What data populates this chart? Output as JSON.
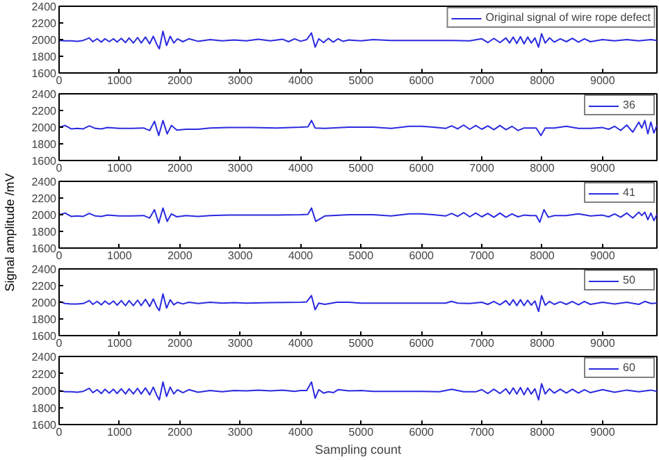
{
  "chart_data": [
    {
      "type": "line",
      "xlim": [
        0,
        9900
      ],
      "xticks": [
        0,
        1000,
        2000,
        3000,
        4000,
        5000,
        6000,
        7000,
        8000,
        9000
      ],
      "ylim": [
        1600,
        2400
      ],
      "yticks": [
        1600,
        1800,
        2000,
        2200,
        2400
      ],
      "grid": false,
      "legend": "top right",
      "x": [
        0,
        100,
        200,
        300,
        400,
        500,
        560,
        630,
        700,
        760,
        830,
        900,
        960,
        1030,
        1100,
        1160,
        1230,
        1300,
        1360,
        1430,
        1500,
        1560,
        1620,
        1660,
        1720,
        1780,
        1840,
        1900,
        1960,
        2050,
        2150,
        2300,
        2500,
        2700,
        2900,
        3100,
        3300,
        3500,
        3700,
        3800,
        3900,
        4000,
        4100,
        4180,
        4240,
        4300,
        4380,
        4460,
        4540,
        4620,
        4700,
        4800,
        5000,
        5200,
        5500,
        6000,
        6500,
        6800,
        7000,
        7100,
        7200,
        7300,
        7400,
        7460,
        7520,
        7580,
        7640,
        7700,
        7760,
        7820,
        7880,
        7940,
        7990,
        8050,
        8120,
        8200,
        8300,
        8400,
        8500,
        8600,
        8700,
        8800,
        9000,
        9200,
        9400,
        9600,
        9800,
        9900
      ],
      "series": [
        {
          "name": "Original signal of wire rope defect",
          "color": "#2a2ae0",
          "values": [
            1990,
            1985,
            1985,
            1980,
            1990,
            2020,
            1975,
            2010,
            1970,
            2010,
            1975,
            2010,
            1970,
            2015,
            1965,
            2020,
            1960,
            2025,
            1960,
            2030,
            1950,
            2040,
            1940,
            1890,
            2100,
            1930,
            2040,
            1960,
            2010,
            1975,
            2010,
            1980,
            2000,
            1985,
            1995,
            1985,
            2005,
            1985,
            2005,
            1975,
            2010,
            1980,
            2000,
            2080,
            1910,
            2010,
            1965,
            2015,
            1970,
            2010,
            1980,
            1995,
            1985,
            2000,
            1990,
            1990,
            1990,
            1985,
            2010,
            1965,
            2015,
            1965,
            2020,
            1960,
            2030,
            1955,
            2035,
            1950,
            2030,
            1960,
            2020,
            1910,
            2070,
            1960,
            2020,
            1970,
            2010,
            1975,
            2015,
            1970,
            2010,
            1975,
            2000,
            1985,
            2000,
            1985,
            2000,
            1990
          ]
        }
      ]
    },
    {
      "type": "line",
      "xlim": [
        0,
        9900
      ],
      "xticks": [
        0,
        1000,
        2000,
        3000,
        4000,
        5000,
        6000,
        7000,
        8000,
        9000
      ],
      "ylim": [
        1600,
        2400
      ],
      "yticks": [
        1600,
        1800,
        2000,
        2200,
        2400
      ],
      "grid": false,
      "legend": "top right",
      "x": [
        0,
        100,
        200,
        300,
        400,
        500,
        600,
        700,
        800,
        1000,
        1200,
        1400,
        1500,
        1580,
        1650,
        1720,
        1790,
        1860,
        1950,
        2100,
        2300,
        2500,
        2800,
        3200,
        3600,
        4000,
        4120,
        4180,
        4240,
        4400,
        4800,
        5200,
        5500,
        5800,
        6000,
        6200,
        6400,
        6500,
        6600,
        6700,
        6800,
        6900,
        7000,
        7100,
        7200,
        7300,
        7400,
        7500,
        7600,
        7700,
        7800,
        7900,
        7980,
        8050,
        8200,
        8400,
        8600,
        8800,
        9000,
        9100,
        9200,
        9300,
        9400,
        9500,
        9600,
        9650,
        9700,
        9750,
        9800,
        9850,
        9900
      ],
      "series": [
        {
          "name": "36",
          "color": "#2a2ae0",
          "values": [
            2000,
            2020,
            1980,
            1985,
            1980,
            2015,
            1985,
            1980,
            1995,
            1985,
            1985,
            1990,
            1960,
            2070,
            1900,
            2080,
            1920,
            2020,
            1965,
            1975,
            1975,
            1990,
            1995,
            1995,
            1990,
            2000,
            2005,
            2080,
            1990,
            1985,
            2000,
            2000,
            1985,
            2010,
            2010,
            2000,
            1985,
            2015,
            1980,
            2025,
            1975,
            2020,
            1975,
            2015,
            1970,
            2020,
            1970,
            2010,
            1960,
            1990,
            1990,
            1990,
            1900,
            1990,
            1990,
            2010,
            1985,
            1985,
            1995,
            1975,
            2010,
            1960,
            2025,
            1940,
            2060,
            1990,
            2080,
            1920,
            2060,
            1930,
            2020
          ]
        }
      ]
    },
    {
      "type": "line",
      "xlim": [
        0,
        9900
      ],
      "xticks": [
        0,
        1000,
        2000,
        3000,
        4000,
        5000,
        6000,
        7000,
        8000,
        9000
      ],
      "ylim": [
        1600,
        2400
      ],
      "yticks": [
        1600,
        1800,
        2000,
        2200,
        2400
      ],
      "grid": false,
      "legend": "top right",
      "ylabel": "Signal amplitude  /mV",
      "x": [
        0,
        100,
        200,
        300,
        400,
        500,
        600,
        700,
        800,
        1000,
        1200,
        1400,
        1500,
        1580,
        1650,
        1720,
        1790,
        1860,
        1950,
        2100,
        2300,
        2500,
        2800,
        3200,
        3600,
        4000,
        4120,
        4180,
        4250,
        4400,
        4800,
        5200,
        5500,
        5800,
        6000,
        6200,
        6400,
        6500,
        6600,
        6700,
        6800,
        6900,
        7000,
        7100,
        7200,
        7300,
        7400,
        7500,
        7600,
        7700,
        7800,
        7900,
        7960,
        8030,
        8100,
        8200,
        8400,
        8600,
        8800,
        9000,
        9100,
        9200,
        9300,
        9400,
        9500,
        9600,
        9650,
        9700,
        9750,
        9800,
        9850,
        9900
      ],
      "series": [
        {
          "name": "41",
          "color": "#2a2ae0",
          "values": [
            2000,
            2020,
            1980,
            1985,
            1980,
            2015,
            1985,
            1980,
            1995,
            1985,
            1985,
            1990,
            1960,
            2060,
            1900,
            2080,
            1920,
            2010,
            1975,
            1990,
            1980,
            1990,
            1995,
            1995,
            1995,
            2000,
            2005,
            2080,
            1920,
            1985,
            2000,
            2000,
            1985,
            2010,
            2010,
            2000,
            1985,
            2015,
            1980,
            2025,
            1975,
            2020,
            1975,
            2015,
            1970,
            2020,
            1970,
            2010,
            1975,
            1995,
            1990,
            1990,
            1910,
            2060,
            1970,
            1990,
            1990,
            2010,
            1985,
            1995,
            1975,
            2010,
            1970,
            2020,
            1960,
            2030,
            1990,
            2030,
            1940,
            2020,
            1930,
            2000
          ]
        }
      ]
    },
    {
      "type": "line",
      "xlim": [
        0,
        9900
      ],
      "xticks": [
        0,
        1000,
        2000,
        3000,
        4000,
        5000,
        6000,
        7000,
        8000,
        9000
      ],
      "ylim": [
        1600,
        2400
      ],
      "yticks": [
        1600,
        1800,
        2000,
        2200,
        2400
      ],
      "grid": false,
      "legend": "top right",
      "x": [
        0,
        100,
        200,
        300,
        400,
        500,
        560,
        630,
        700,
        760,
        830,
        900,
        960,
        1030,
        1100,
        1160,
        1230,
        1300,
        1360,
        1430,
        1500,
        1560,
        1620,
        1660,
        1720,
        1780,
        1840,
        1900,
        1960,
        2050,
        2150,
        2300,
        2500,
        2700,
        2900,
        3100,
        3500,
        4000,
        4100,
        4180,
        4240,
        4300,
        4400,
        4600,
        4800,
        5000,
        5500,
        6000,
        6400,
        6500,
        6600,
        6800,
        7000,
        7100,
        7200,
        7300,
        7400,
        7460,
        7520,
        7580,
        7640,
        7700,
        7760,
        7820,
        7880,
        7940,
        7990,
        8050,
        8120,
        8200,
        8300,
        8400,
        8500,
        8600,
        8700,
        8800,
        9000,
        9200,
        9400,
        9600,
        9700,
        9800,
        9900
      ],
      "series": [
        {
          "name": "50",
          "color": "#2a2ae0",
          "values": [
            2010,
            1985,
            1980,
            1980,
            1985,
            2020,
            1975,
            2010,
            1970,
            2015,
            1975,
            2015,
            1965,
            2020,
            1960,
            2020,
            1960,
            2025,
            1960,
            2035,
            1950,
            2040,
            1940,
            1900,
            2100,
            1930,
            2030,
            1970,
            2000,
            1980,
            2000,
            1985,
            2000,
            1990,
            1995,
            1990,
            1995,
            2000,
            2005,
            2080,
            1910,
            1990,
            1975,
            2000,
            2000,
            1990,
            1990,
            1990,
            1990,
            2010,
            1990,
            1985,
            2000,
            1975,
            2010,
            1970,
            2020,
            1965,
            2030,
            1960,
            2030,
            1960,
            2025,
            1965,
            2015,
            1890,
            2080,
            1965,
            2010,
            1975,
            2005,
            1975,
            2010,
            1970,
            2010,
            1975,
            2000,
            1980,
            2000,
            1975,
            2010,
            1985,
            1990
          ]
        }
      ]
    },
    {
      "type": "line",
      "xlim": [
        0,
        9900
      ],
      "xticks": [
        0,
        1000,
        2000,
        3000,
        4000,
        5000,
        6000,
        7000,
        8000,
        9000
      ],
      "ylim": [
        1600,
        2400
      ],
      "yticks": [
        1600,
        1800,
        2000,
        2200,
        2400
      ],
      "grid": false,
      "legend": "top right",
      "xlabel": "Sampling count",
      "x": [
        0,
        100,
        200,
        300,
        400,
        500,
        560,
        630,
        700,
        760,
        830,
        900,
        960,
        1030,
        1100,
        1160,
        1230,
        1300,
        1360,
        1430,
        1500,
        1560,
        1620,
        1660,
        1720,
        1780,
        1840,
        1900,
        1960,
        2050,
        2150,
        2300,
        2500,
        2700,
        2900,
        3100,
        3300,
        3500,
        3700,
        3900,
        4000,
        4100,
        4180,
        4240,
        4300,
        4380,
        4460,
        4540,
        4620,
        4800,
        5000,
        5200,
        5500,
        6000,
        6300,
        6500,
        6700,
        6900,
        7000,
        7100,
        7200,
        7300,
        7400,
        7460,
        7520,
        7580,
        7640,
        7700,
        7760,
        7820,
        7880,
        7940,
        7990,
        8050,
        8120,
        8200,
        8300,
        8400,
        8500,
        8600,
        8700,
        8800,
        9000,
        9200,
        9400,
        9600,
        9800,
        9900
      ],
      "series": [
        {
          "name": "60",
          "color": "#2a2ae0",
          "values": [
            2000,
            1985,
            1985,
            1980,
            1990,
            2025,
            1975,
            2010,
            1965,
            2015,
            1970,
            2015,
            1965,
            2020,
            1960,
            2020,
            1960,
            2025,
            1960,
            2030,
            1950,
            2040,
            1940,
            1890,
            2100,
            1930,
            2040,
            1960,
            2010,
            1975,
            2010,
            1980,
            2000,
            1985,
            2000,
            1995,
            2005,
            1995,
            2005,
            1990,
            2000,
            2000,
            2100,
            1910,
            2010,
            1970,
            1985,
            1975,
            2010,
            1995,
            2000,
            1990,
            1990,
            1990,
            1985,
            2015,
            1985,
            1985,
            2010,
            1965,
            2015,
            1965,
            2020,
            1960,
            2030,
            1960,
            2035,
            1950,
            2030,
            1960,
            2020,
            1890,
            2080,
            1960,
            2020,
            1970,
            2015,
            1970,
            2015,
            1970,
            2010,
            1975,
            2010,
            1980,
            2005,
            1985,
            2005,
            1990
          ]
        }
      ]
    }
  ]
}
